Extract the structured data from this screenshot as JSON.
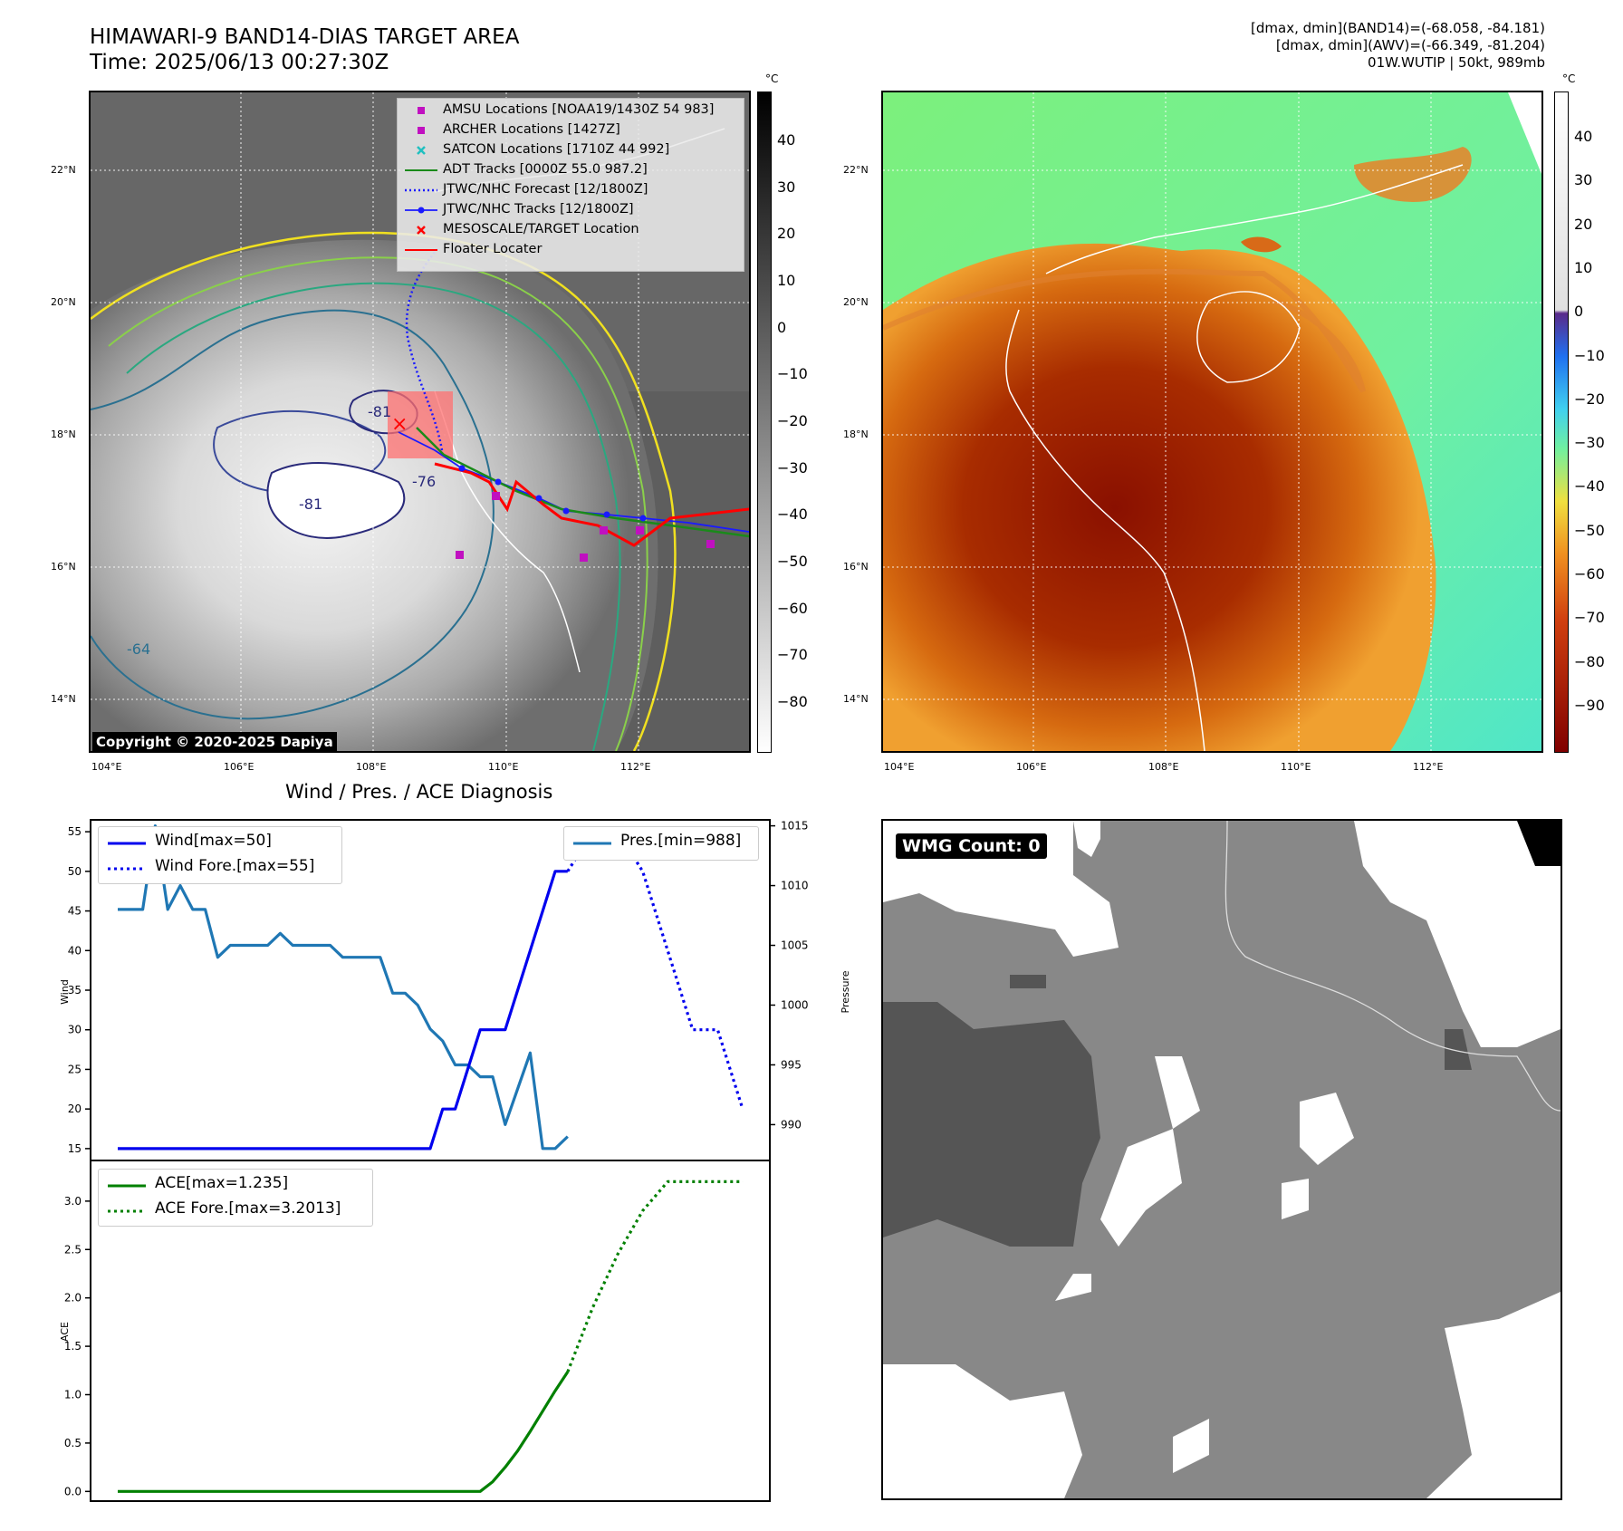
{
  "header": {
    "title_line1": "HIMAWARI-9 BAND14-DIAS TARGET AREA",
    "title_line2": "Time: 2025/06/13 00:27:30Z",
    "info_line1": "[dmax, dmin](BAND14)=(-68.058, -84.181)",
    "info_line2": "[dmax, dmin](AWV)=(-66.349, -81.204)",
    "info_line3": "01W.WUTIP | 50kt, 989mb"
  },
  "map_axes": {
    "lon_labels": [
      "104°E",
      "106°E",
      "108°E",
      "110°E",
      "112°E"
    ],
    "lat_labels": [
      "22°N",
      "20°N",
      "18°N",
      "16°N",
      "14°N"
    ]
  },
  "ir_map": {
    "copyright": "Copyright © 2020-2025 Dapiya",
    "contour_labels": [
      "-81",
      "-81",
      "-76",
      "-64",
      "-81"
    ],
    "legend": [
      {
        "label": "AMSU Locations [NOAA19/1430Z 54 983]",
        "color": "#c010c0",
        "marker": "square"
      },
      {
        "label": "ARCHER Locations [1427Z]",
        "color": "#c010c0",
        "marker": "square"
      },
      {
        "label": "SATCON Locations [1710Z 44 992]",
        "color": "#20c0c0",
        "marker": "x"
      },
      {
        "label": "ADT Tracks [0000Z 55.0 987.2]",
        "color": "#1a8a1a",
        "marker": "line"
      },
      {
        "label": "JTWC/NHC Forecast [12/1800Z]",
        "color": "#1a1aff",
        "marker": "dotted"
      },
      {
        "label": "JTWC/NHC Tracks [12/1800Z]",
        "color": "#1a1aff",
        "marker": "line-dot"
      },
      {
        "label": "MESOSCALE/TARGET Location",
        "color": "#ff0000",
        "marker": "x"
      },
      {
        "label": "Floater Locater",
        "color": "#ff0000",
        "marker": "line"
      }
    ],
    "colorbar": {
      "unit": "°C",
      "ticks": [
        "40",
        "30",
        "20",
        "10",
        "0",
        "−10",
        "−20",
        "−30",
        "−40",
        "−50",
        "−60",
        "−70",
        "−80"
      ]
    }
  },
  "awv_map": {
    "colorbar": {
      "unit": "°C",
      "ticks": [
        "40",
        "30",
        "20",
        "10",
        "0",
        "−10",
        "−20",
        "−30",
        "−40",
        "−50",
        "−60",
        "−70",
        "−80",
        "−90"
      ]
    }
  },
  "wmg_panel": {
    "badge": "WMG Count: 0"
  },
  "chart_data": [
    {
      "type": "line",
      "title": "Wind / Pres. / ACE Diagnosis",
      "ylabel": "Wind",
      "y2label": "Pressure",
      "ylim": [
        13.5,
        56.5
      ],
      "y2lim": [
        987,
        1015.5
      ],
      "yticks": [
        "55",
        "50",
        "45",
        "40",
        "35",
        "30",
        "25",
        "20",
        "15"
      ],
      "y2ticks": [
        "1015",
        "1010",
        "1005",
        "1000",
        "995",
        "990"
      ],
      "x": [
        0,
        1,
        2,
        3,
        4,
        5,
        6,
        7,
        8,
        9,
        10,
        11,
        12,
        13,
        14,
        15,
        16,
        17,
        18,
        19,
        20,
        21,
        22,
        23,
        24,
        25,
        26,
        27,
        28,
        29,
        30,
        31,
        32,
        33,
        34,
        35,
        36,
        37,
        38,
        39,
        40,
        41,
        42,
        43,
        44,
        45,
        46,
        47,
        48,
        49,
        50
      ],
      "series": [
        {
          "name": "Wind[max=50]",
          "color": "#0000ee",
          "style": "solid",
          "axis": "left",
          "x": [
            0,
            25,
            26,
            27,
            28,
            29,
            30,
            31,
            32,
            33,
            34,
            35,
            36
          ],
          "values": [
            15,
            15,
            20,
            20,
            25,
            30,
            30,
            30,
            35,
            40,
            45,
            50,
            50
          ]
        },
        {
          "name": "Wind Fore.[max=55]",
          "color": "#0000ee",
          "style": "dotted",
          "axis": "left",
          "x": [
            36,
            38,
            39,
            40,
            42,
            44,
            46,
            48,
            50
          ],
          "values": [
            50,
            55,
            55,
            55,
            50,
            40,
            30,
            30,
            20
          ]
        },
        {
          "name": "Pres.[min=988]",
          "color": "#1f77b4",
          "style": "solid",
          "axis": "right",
          "x": [
            0,
            1,
            2,
            3,
            4,
            5,
            6,
            7,
            8,
            9,
            10,
            11,
            12,
            13,
            14,
            15,
            16,
            17,
            18,
            19,
            20,
            21,
            22,
            23,
            24,
            25,
            26,
            27,
            28,
            29,
            30,
            31,
            32,
            33,
            34,
            35,
            36
          ],
          "values": [
            1008,
            1008,
            1008,
            1015,
            1008,
            1010,
            1008,
            1008,
            1004,
            1005,
            1005,
            1005,
            1005,
            1006,
            1005,
            1005,
            1005,
            1005,
            1004,
            1004,
            1004,
            1004,
            1001,
            1001,
            1000,
            998,
            997,
            995,
            995,
            994,
            994,
            990,
            993,
            996,
            988,
            988,
            989
          ]
        }
      ]
    },
    {
      "type": "line",
      "ylabel": "ACE",
      "ylim": [
        -0.1,
        3.42
      ],
      "yticks": [
        "3.0",
        "2.5",
        "2.0",
        "1.5",
        "1.0",
        "0.5",
        "0.0"
      ],
      "series": [
        {
          "name": "ACE[max=1.235]",
          "color": "#008000",
          "style": "solid",
          "x": [
            0,
            29,
            30,
            31,
            32,
            33,
            34,
            35,
            36
          ],
          "values": [
            0,
            0,
            0.1,
            0.25,
            0.42,
            0.62,
            0.83,
            1.04,
            1.235
          ]
        },
        {
          "name": "ACE Fore.[max=3.2013]",
          "color": "#008000",
          "style": "dotted",
          "x": [
            36,
            38,
            40,
            42,
            44,
            46,
            48,
            50
          ],
          "values": [
            1.235,
            1.9,
            2.45,
            2.9,
            3.2013,
            3.2013,
            3.2013,
            3.2013
          ]
        }
      ]
    }
  ]
}
